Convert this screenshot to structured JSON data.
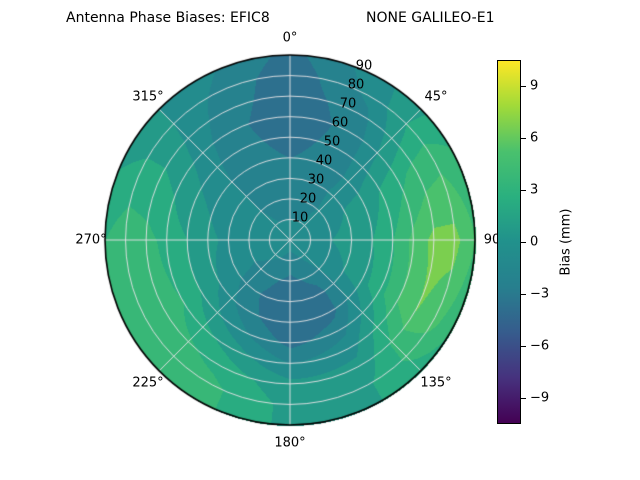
{
  "title": {
    "left": "Antenna Phase Biases: EFIC8",
    "right": "NONE GALILEO-E1"
  },
  "colorbar": {
    "label": "Bias (mm)",
    "tick_labels": [
      "9",
      "6",
      "3",
      "0",
      "−3",
      "−6",
      "−9"
    ],
    "tick_values": [
      9,
      6,
      3,
      0,
      -3,
      -6,
      -9
    ]
  },
  "chart_data": {
    "type": "heatmap",
    "projection": "polar",
    "title": "Antenna Phase Biases: EFIC8          NONE GALILEO-E1",
    "colormap": "viridis",
    "colorbar_label": "Bias (mm)",
    "value_range": [
      -10.5,
      10.5
    ],
    "contour_step": 1.5,
    "angular_tick_labels": [
      "0°",
      "45°",
      "90",
      "135°",
      "180°",
      "225°",
      "270°",
      "315°"
    ],
    "angular_tick_deg": [
      0,
      45,
      90,
      135,
      180,
      225,
      270,
      315
    ],
    "radial_tick_labels": [
      "10",
      "20",
      "30",
      "40",
      "50",
      "60",
      "70",
      "80",
      "90"
    ],
    "radial_tick_values": [
      10,
      20,
      30,
      40,
      50,
      60,
      70,
      80,
      90
    ],
    "azimuth_deg": [
      0,
      30,
      60,
      90,
      120,
      150,
      180,
      210,
      240,
      270,
      300,
      330
    ],
    "zenith_deg": [
      0,
      10,
      20,
      30,
      40,
      50,
      60,
      70,
      80,
      90
    ],
    "bias_mm": [
      [
        -1.0,
        -1.5,
        -2.0,
        -2.5,
        -3.0,
        -3.5,
        -4.0,
        -4.0,
        -4.0,
        -3.5
      ],
      [
        -1.0,
        -1.5,
        -2.0,
        -2.0,
        -2.5,
        -2.5,
        -2.5,
        -2.0,
        -1.0,
        -0.5
      ],
      [
        -1.0,
        -0.5,
        -0.5,
        0.0,
        0.5,
        1.5,
        2.5,
        3.5,
        4.0,
        3.0
      ],
      [
        -1.0,
        -0.5,
        0.0,
        0.5,
        1.5,
        3.0,
        5.0,
        6.5,
        6.5,
        4.5
      ],
      [
        -1.0,
        -0.5,
        -0.5,
        0.0,
        1.0,
        2.5,
        4.5,
        6.0,
        5.0,
        3.0
      ],
      [
        -1.0,
        -1.5,
        -2.5,
        -3.5,
        -3.5,
        -2.0,
        -0.5,
        0.5,
        1.5,
        1.5
      ],
      [
        -1.0,
        -2.0,
        -3.5,
        -4.5,
        -4.5,
        -3.5,
        -1.5,
        0.5,
        1.0,
        1.0
      ],
      [
        -1.0,
        -1.5,
        -2.5,
        -3.0,
        -2.5,
        -1.0,
        1.0,
        2.5,
        3.5,
        3.5
      ],
      [
        -1.0,
        -1.0,
        -1.5,
        -1.0,
        0.0,
        1.5,
        3.0,
        4.0,
        4.5,
        4.0
      ],
      [
        -1.0,
        -1.0,
        -1.0,
        -0.5,
        0.5,
        1.5,
        2.5,
        3.5,
        4.0,
        3.0
      ],
      [
        -1.0,
        -1.0,
        -1.0,
        -1.0,
        -0.5,
        0.0,
        1.0,
        1.5,
        1.5,
        1.0
      ],
      [
        -1.0,
        -1.5,
        -2.0,
        -2.0,
        -2.5,
        -2.5,
        -2.5,
        -2.0,
        -1.5,
        -1.0
      ]
    ]
  }
}
